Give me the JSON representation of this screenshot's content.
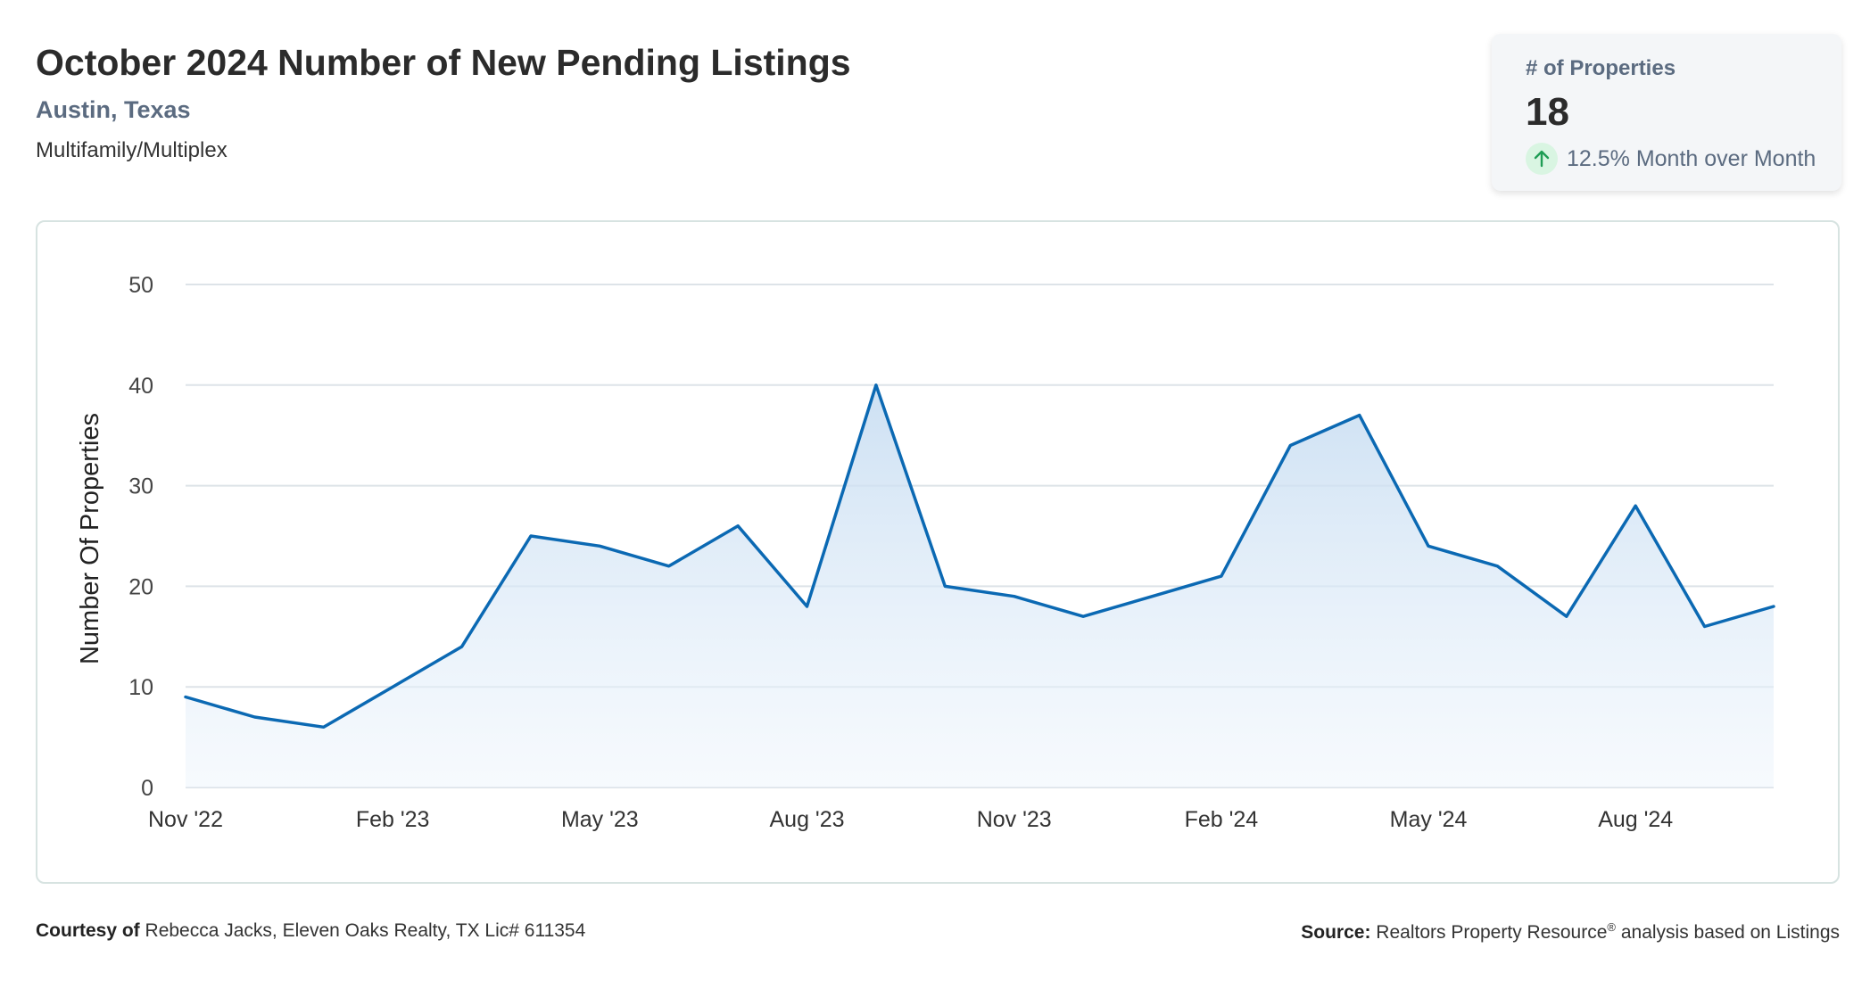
{
  "header": {
    "title": "October 2024 Number of New Pending Listings",
    "location": "Austin, Texas",
    "property_type": "Multifamily/Multiplex"
  },
  "kpi": {
    "label": "# of Properties",
    "value": "18",
    "change": "12.5% Month over Month",
    "change_icon": "arrow-up-icon",
    "change_color": "#1f9d55"
  },
  "footer": {
    "courtesy_label": "Courtesy of",
    "courtesy_text": "Rebecca Jacks, Eleven Oaks Realty, TX Lic# 611354",
    "source_label": "Source:",
    "source_text_a": "Realtors Property Resource",
    "source_sup": "®",
    "source_text_b": "analysis based on Listings"
  },
  "colors": {
    "line": "#0b69b3",
    "fill_top": "#cfe2f5",
    "grid": "#dde3e8",
    "accent_text": "#5b6b80"
  },
  "chart_data": {
    "type": "area",
    "ylabel": "Number Of Properties",
    "ylim": [
      0,
      50
    ],
    "yticks": [
      0,
      10,
      20,
      30,
      40,
      50
    ],
    "x": [
      "Nov '22",
      "Dec '22",
      "Jan '23",
      "Feb '23",
      "Mar '23",
      "Apr '23",
      "May '23",
      "Jun '23",
      "Jul '23",
      "Aug '23",
      "Sep '23",
      "Oct '23",
      "Nov '23",
      "Dec '23",
      "Jan '24",
      "Feb '24",
      "Mar '24",
      "Apr '24",
      "May '24",
      "Jun '24",
      "Jul '24",
      "Aug '24",
      "Sep '24",
      "Oct '24"
    ],
    "xtick_labels": [
      "Nov '22",
      "Feb '23",
      "May '23",
      "Aug '23",
      "Nov '23",
      "Feb '24",
      "May '24",
      "Aug '24"
    ],
    "series": [
      {
        "values": [
          9,
          7,
          6,
          10,
          14,
          25,
          24,
          22,
          26,
          18,
          40,
          20,
          19,
          17,
          19,
          21,
          34,
          37,
          24,
          22,
          17,
          28,
          16,
          18
        ]
      }
    ],
    "grid": true,
    "legend": "none"
  }
}
